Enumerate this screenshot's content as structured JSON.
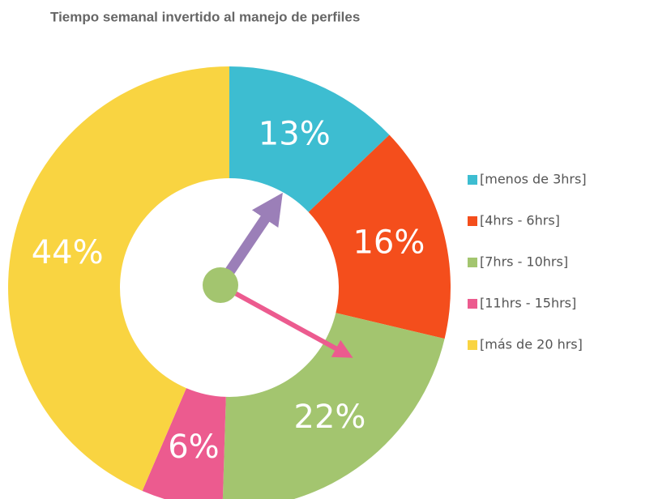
{
  "chart_data": {
    "type": "donut",
    "title": "Tiempo semanal invertido al manejo de perfiles",
    "categories": [
      "[menos de 3hrs]",
      "[4hrs - 6hrs]",
      "[7hrs - 10hrs]",
      "[11hrs - 15hrs]",
      "[más de 20 hrs]"
    ],
    "values": [
      13,
      16,
      22,
      6,
      44
    ],
    "value_labels": [
      "13%",
      "16%",
      "22%",
      "6%",
      "44%"
    ],
    "colors": [
      "#3dbdd1",
      "#f44e1c",
      "#a3c56f",
      "#ec5b8f",
      "#f9d441"
    ],
    "legend": "right"
  }
}
